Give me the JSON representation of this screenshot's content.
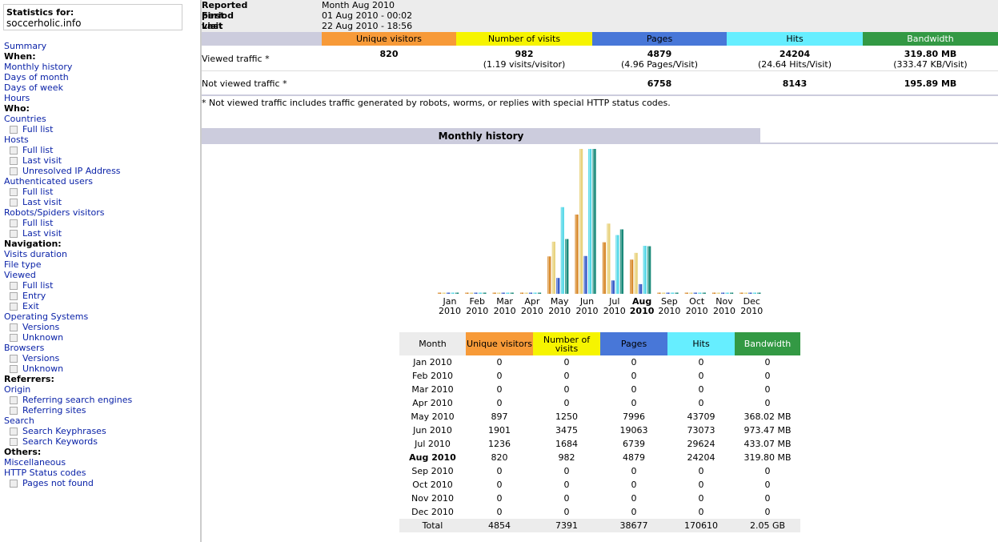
{
  "sidebar": {
    "stats_for_label": "Statistics for:",
    "site": "soccerholic.info",
    "items": [
      {
        "label": "Summary",
        "type": "link"
      },
      {
        "label": "When:",
        "type": "head"
      },
      {
        "label": "Monthly history",
        "type": "link"
      },
      {
        "label": "Days of month",
        "type": "link"
      },
      {
        "label": "Days of week",
        "type": "link"
      },
      {
        "label": "Hours",
        "type": "link"
      },
      {
        "label": "Who:",
        "type": "head"
      },
      {
        "label": "Countries",
        "type": "link"
      },
      {
        "label": "Full list",
        "type": "sub"
      },
      {
        "label": "Hosts",
        "type": "link"
      },
      {
        "label": "Full list",
        "type": "sub"
      },
      {
        "label": "Last visit",
        "type": "sub"
      },
      {
        "label": "Unresolved IP Address",
        "type": "sub"
      },
      {
        "label": "Authenticated users",
        "type": "link"
      },
      {
        "label": "Full list",
        "type": "sub"
      },
      {
        "label": "Last visit",
        "type": "sub"
      },
      {
        "label": "Robots/Spiders visitors",
        "type": "link"
      },
      {
        "label": "Full list",
        "type": "sub"
      },
      {
        "label": "Last visit",
        "type": "sub"
      },
      {
        "label": "Navigation:",
        "type": "head"
      },
      {
        "label": "Visits duration",
        "type": "link"
      },
      {
        "label": "File type",
        "type": "link"
      },
      {
        "label": "Viewed",
        "type": "link"
      },
      {
        "label": "Full list",
        "type": "sub"
      },
      {
        "label": "Entry",
        "type": "sub"
      },
      {
        "label": "Exit",
        "type": "sub"
      },
      {
        "label": "Operating Systems",
        "type": "link"
      },
      {
        "label": "Versions",
        "type": "sub"
      },
      {
        "label": "Unknown",
        "type": "sub"
      },
      {
        "label": "Browsers",
        "type": "link"
      },
      {
        "label": "Versions",
        "type": "sub"
      },
      {
        "label": "Unknown",
        "type": "sub"
      },
      {
        "label": "Referrers:",
        "type": "head"
      },
      {
        "label": "Origin",
        "type": "link"
      },
      {
        "label": "Referring search engines",
        "type": "sub"
      },
      {
        "label": "Referring sites",
        "type": "sub"
      },
      {
        "label": "Search",
        "type": "link"
      },
      {
        "label": "Search Keyphrases",
        "type": "sub"
      },
      {
        "label": "Search Keywords",
        "type": "sub"
      },
      {
        "label": "Others:",
        "type": "head"
      },
      {
        "label": "Miscellaneous",
        "type": "link"
      },
      {
        "label": "HTTP Status codes",
        "type": "link"
      },
      {
        "label": "Pages not found",
        "type": "sub"
      }
    ]
  },
  "summary": {
    "reported_period_label": "Reported period",
    "reported_period_value": "Month Aug 2010",
    "first_visit_label": "First visit",
    "first_visit_value": "01 Aug 2010 - 00:02",
    "last_visit_label": "Last visit",
    "last_visit_value": "22 Aug 2010 - 18:56",
    "columns": [
      "Unique visitors",
      "Number of visits",
      "Pages",
      "Hits",
      "Bandwidth"
    ],
    "viewed_label": "Viewed traffic *",
    "viewed": {
      "unique": "820",
      "visits": "982",
      "visits_sub": "(1.19 visits/visitor)",
      "pages": "4879",
      "pages_sub": "(4.96 Pages/Visit)",
      "hits": "24204",
      "hits_sub": "(24.64 Hits/Visit)",
      "bandwidth": "319.80 MB",
      "bandwidth_sub": "(333.47 KB/Visit)"
    },
    "not_viewed_label": "Not viewed traffic *",
    "not_viewed": {
      "pages": "6758",
      "hits": "8143",
      "bandwidth": "195.89 MB"
    },
    "footnote": "* Not viewed traffic includes traffic generated by robots, worms, or replies with special HTTP status codes."
  },
  "monthly": {
    "title": "Monthly history",
    "table_month_header": "Month",
    "table_headers": [
      "Unique visitors",
      "Number of visits",
      "Pages",
      "Hits",
      "Bandwidth"
    ],
    "rows": [
      {
        "month": "Jan 2010",
        "unique": "0",
        "visits": "0",
        "pages": "0",
        "hits": "0",
        "bandwidth": "0"
      },
      {
        "month": "Feb 2010",
        "unique": "0",
        "visits": "0",
        "pages": "0",
        "hits": "0",
        "bandwidth": "0"
      },
      {
        "month": "Mar 2010",
        "unique": "0",
        "visits": "0",
        "pages": "0",
        "hits": "0",
        "bandwidth": "0"
      },
      {
        "month": "Apr 2010",
        "unique": "0",
        "visits": "0",
        "pages": "0",
        "hits": "0",
        "bandwidth": "0"
      },
      {
        "month": "May 2010",
        "unique": "897",
        "visits": "1250",
        "pages": "7996",
        "hits": "43709",
        "bandwidth": "368.02 MB"
      },
      {
        "month": "Jun 2010",
        "unique": "1901",
        "visits": "3475",
        "pages": "19063",
        "hits": "73073",
        "bandwidth": "973.47 MB"
      },
      {
        "month": "Jul 2010",
        "unique": "1236",
        "visits": "1684",
        "pages": "6739",
        "hits": "29624",
        "bandwidth": "433.07 MB"
      },
      {
        "month": "Aug 2010",
        "unique": "820",
        "visits": "982",
        "pages": "4879",
        "hits": "24204",
        "bandwidth": "319.80 MB"
      },
      {
        "month": "Sep 2010",
        "unique": "0",
        "visits": "0",
        "pages": "0",
        "hits": "0",
        "bandwidth": "0"
      },
      {
        "month": "Oct 2010",
        "unique": "0",
        "visits": "0",
        "pages": "0",
        "hits": "0",
        "bandwidth": "0"
      },
      {
        "month": "Nov 2010",
        "unique": "0",
        "visits": "0",
        "pages": "0",
        "hits": "0",
        "bandwidth": "0"
      },
      {
        "month": "Dec 2010",
        "unique": "0",
        "visits": "0",
        "pages": "0",
        "hits": "0",
        "bandwidth": "0"
      }
    ],
    "total": {
      "month": "Total",
      "unique": "4854",
      "visits": "7391",
      "pages": "38677",
      "hits": "170610",
      "bandwidth": "2.05 GB"
    },
    "current_month": "Aug 2010"
  },
  "colors": {
    "unique": "#f79a38",
    "visits": "#f6f400",
    "pages": "#4877d8",
    "hits": "#66eeff",
    "bandwidth": "#339944",
    "header_bg": "#ccccdd",
    "row_bg": "#ececec",
    "link": "#0b23a8"
  },
  "chart_data": {
    "type": "bar",
    "categories": [
      "Jan",
      "Feb",
      "Mar",
      "Apr",
      "May",
      "Jun",
      "Jul",
      "Aug",
      "Sep",
      "Oct",
      "Nov",
      "Dec"
    ],
    "category_years": [
      "2010",
      "2010",
      "2010",
      "2010",
      "2010",
      "2010",
      "2010",
      "2010",
      "2010",
      "2010",
      "2010",
      "2010"
    ],
    "highlight_category": "Aug",
    "series": [
      {
        "name": "Unique visitors",
        "values": [
          0,
          0,
          0,
          0,
          897,
          1901,
          1236,
          820,
          0,
          0,
          0,
          0
        ],
        "color": "#d88a2c"
      },
      {
        "name": "Number of visits",
        "values": [
          0,
          0,
          0,
          0,
          1250,
          3475,
          1684,
          982,
          0,
          0,
          0,
          0
        ],
        "color": "#e8d27c"
      },
      {
        "name": "Pages",
        "values": [
          0,
          0,
          0,
          0,
          7996,
          19063,
          6739,
          4879,
          0,
          0,
          0,
          0
        ],
        "color": "#3a5ec8"
      },
      {
        "name": "Hits",
        "values": [
          0,
          0,
          0,
          0,
          43709,
          73073,
          29624,
          24204,
          0,
          0,
          0,
          0
        ],
        "color": "#55d8e8"
      },
      {
        "name": "Bandwidth (MB)",
        "values": [
          0,
          0,
          0,
          0,
          368.02,
          973.47,
          433.07,
          319.8,
          0,
          0,
          0,
          0
        ],
        "color": "#1a8a7a"
      }
    ],
    "scale_groups": [
      [
        0,
        1
      ],
      [
        2,
        3
      ],
      [
        4
      ]
    ],
    "grid": false,
    "legend": "none"
  }
}
